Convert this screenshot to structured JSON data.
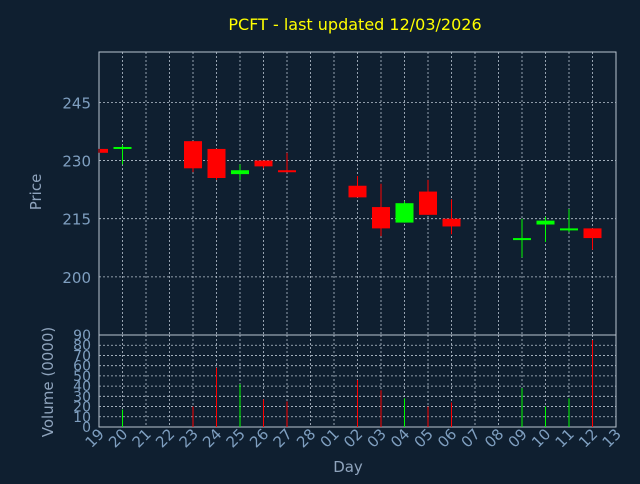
{
  "chart_data": {
    "type": "candlestick",
    "title": "PCFT - last updated 12/03/2026",
    "xlabel": "Day",
    "price_panel": {
      "ylabel": "Price",
      "yticks": [
        200,
        215,
        230,
        245
      ],
      "ylim": [
        185,
        258
      ]
    },
    "volume_panel": {
      "ylabel": "Volume (0000)",
      "yticks": [
        0,
        10,
        20,
        30,
        40,
        50,
        60,
        70,
        80,
        90
      ],
      "ylim": [
        0,
        90
      ]
    },
    "x_tick_labels": [
      "19",
      "20",
      "21",
      "22",
      "23",
      "24",
      "25",
      "26",
      "27",
      "28",
      "01",
      "02",
      "03",
      "04",
      "05",
      "06",
      "07",
      "08",
      "09",
      "10",
      "11",
      "12",
      "13"
    ],
    "candles": [
      {
        "day": "19",
        "open": 233.0,
        "close": 232.0,
        "high": 233.0,
        "low": 232.0,
        "volume": 0
      },
      {
        "day": "20",
        "open": 233.5,
        "close": 233.5,
        "high": 234.0,
        "low": 229.0,
        "volume": 17
      },
      {
        "day": "23",
        "open": 235.0,
        "close": 228.0,
        "high": 235.0,
        "low": 227.0,
        "volume": 20
      },
      {
        "day": "24",
        "open": 233.0,
        "close": 225.5,
        "high": 233.0,
        "low": 225.0,
        "volume": 58
      },
      {
        "day": "25",
        "open": 226.5,
        "close": 227.5,
        "high": 229.0,
        "low": 225.0,
        "volume": 42
      },
      {
        "day": "26",
        "open": 230.0,
        "close": 228.5,
        "high": 230.0,
        "low": 228.0,
        "volume": 27
      },
      {
        "day": "27",
        "open": 227.5,
        "close": 227.0,
        "high": 232.0,
        "low": 227.0,
        "volume": 25
      },
      {
        "day": "02",
        "open": 223.5,
        "close": 220.5,
        "high": 226.0,
        "low": 220.5,
        "volume": 46
      },
      {
        "day": "03",
        "open": 218.0,
        "close": 212.5,
        "high": 224.0,
        "low": 210.5,
        "volume": 36
      },
      {
        "day": "04",
        "open": 214.0,
        "close": 219.0,
        "high": 219.5,
        "low": 214.0,
        "volume": 28
      },
      {
        "day": "05",
        "open": 222.0,
        "close": 216.0,
        "high": 225.0,
        "low": 216.0,
        "volume": 20
      },
      {
        "day": "06",
        "open": 215.0,
        "close": 213.0,
        "high": 220.0,
        "low": 211.0,
        "volume": 24
      },
      {
        "day": "09",
        "open": 209.5,
        "close": 210.0,
        "high": 215.0,
        "low": 205.0,
        "volume": 38
      },
      {
        "day": "10",
        "open": 213.5,
        "close": 214.5,
        "high": 215.5,
        "low": 209.0,
        "volume": 20
      },
      {
        "day": "11",
        "open": 212.0,
        "close": 212.5,
        "high": 217.5,
        "low": 211.5,
        "volume": 28
      },
      {
        "day": "12",
        "open": 212.5,
        "close": 210.0,
        "high": 212.5,
        "low": 207.0,
        "volume": 85
      }
    ],
    "colors": {
      "background": "#0f1f30",
      "up": "#00ff00",
      "down": "#ff0000",
      "grid": "#b8c4d0",
      "axis_text": "#7f9fc0",
      "title": "#ffff00",
      "axis_label": "#8fa4bd"
    },
    "grid": true
  }
}
